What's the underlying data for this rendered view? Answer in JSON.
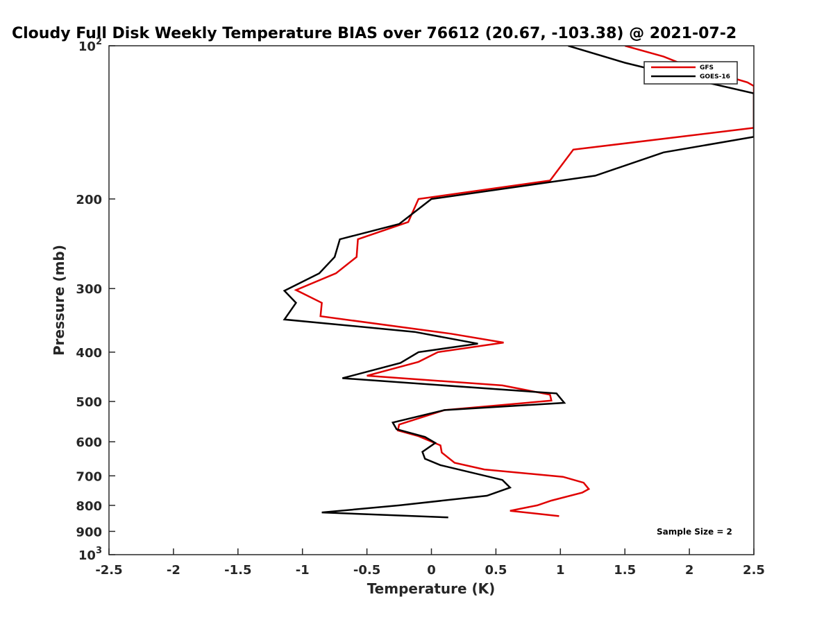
{
  "chart_data": {
    "type": "line",
    "title": "Cloudy Full Disk Weekly Temperature BIAS over 76612 (20.67, -103.38) @ 2021-07-2",
    "xlabel": "Temperature (K)",
    "ylabel": "Pressure (mb)",
    "xlim": [
      -2.5,
      2.5
    ],
    "ylim": [
      100,
      1000
    ],
    "yscale": "log",
    "y_reversed": true,
    "x_ticks": [
      "-2.5",
      "-2",
      "-1.5",
      "-1",
      "-0.5",
      "0",
      "0.5",
      "1",
      "1.5",
      "2",
      "2.5"
    ],
    "y_ticks": [
      {
        "value": 100,
        "base": "10",
        "exp": "2"
      },
      {
        "value": 200,
        "label": "200"
      },
      {
        "value": 300,
        "label": "300"
      },
      {
        "value": 400,
        "label": "400"
      },
      {
        "value": 500,
        "label": "500"
      },
      {
        "value": 600,
        "label": "600"
      },
      {
        "value": 700,
        "label": "700"
      },
      {
        "value": 800,
        "label": "800"
      },
      {
        "value": 900,
        "label": "900"
      },
      {
        "value": 1000,
        "base": "10",
        "exp": "3"
      }
    ],
    "legend_position": "top-right",
    "annotation": "Sample Size = 2",
    "series": [
      {
        "name": "GFS",
        "color": "#e00000",
        "x": [
          1.5,
          1.8,
          2.0,
          2.2,
          2.45,
          2.5,
          2.5,
          1.1,
          0.92,
          -0.1,
          -0.18,
          -0.57,
          -0.58,
          -0.74,
          -1.05,
          -0.85,
          -0.86,
          0.15,
          0.56,
          0.05,
          -0.1,
          -0.5,
          0.55,
          0.92,
          0.93,
          0.1,
          -0.25,
          -0.26,
          -0.1,
          0.07,
          0.08,
          0.18,
          0.41,
          1.02,
          1.18,
          1.22,
          1.17,
          0.93,
          0.82,
          0.61,
          0.99
        ],
        "y": [
          100,
          105,
          110,
          113,
          118,
          120,
          145,
          160,
          184,
          200,
          222,
          240,
          260,
          280,
          302,
          320,
          340,
          368,
          383,
          400,
          418,
          445,
          465,
          485,
          498,
          520,
          555,
          570,
          585,
          610,
          630,
          660,
          680,
          703,
          722,
          743,
          755,
          783,
          800,
          820,
          840
        ]
      },
      {
        "name": "GOES-16",
        "color": "#000000",
        "x": [
          1.06,
          1.5,
          2.0,
          2.5,
          2.5,
          1.8,
          1.27,
          0.0,
          -0.25,
          -0.71,
          -0.75,
          -0.87,
          -1.14,
          -1.05,
          -1.14,
          -0.13,
          0.36,
          -0.1,
          -0.24,
          -0.69,
          0.97,
          1.03,
          0.1,
          -0.3,
          -0.27,
          -0.05,
          0.03,
          -0.07,
          -0.05,
          0.07,
          0.55,
          0.61,
          0.43,
          -0.25,
          -0.85,
          0.13
        ],
        "y": [
          100,
          108,
          116,
          124,
          151,
          162,
          180,
          200,
          224,
          240,
          260,
          280,
          303,
          320,
          345,
          365,
          385,
          400,
          420,
          450,
          482,
          503,
          520,
          550,
          567,
          587,
          603,
          628,
          648,
          667,
          713,
          738,
          766,
          800,
          826,
          845
        ]
      }
    ]
  }
}
